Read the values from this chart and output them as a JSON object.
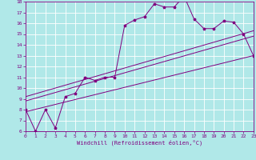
{
  "xlabel": "Windchill (Refroidissement éolien,°C)",
  "bg_color": "#b0e8e8",
  "line_color": "#800080",
  "grid_color": "#ffffff",
  "xmin": 0,
  "xmax": 23,
  "ymin": 6,
  "ymax": 18,
  "series1_x": [
    0,
    1,
    2,
    3,
    4,
    5,
    6,
    7,
    8,
    9,
    10,
    11,
    12,
    13,
    14,
    15,
    16,
    17,
    18,
    19,
    20,
    21,
    22,
    23
  ],
  "series1_y": [
    8,
    6,
    8,
    6.3,
    9.2,
    9.5,
    11.0,
    10.7,
    11.0,
    11.0,
    15.8,
    16.3,
    16.6,
    17.8,
    17.5,
    17.5,
    18.5,
    16.4,
    15.5,
    15.5,
    16.2,
    16.1,
    15.0,
    13.0
  ],
  "series2_x": [
    0,
    23
  ],
  "series2_y": [
    7.8,
    13.0
  ],
  "series3_x": [
    0,
    23
  ],
  "series3_y": [
    8.8,
    14.8
  ],
  "series4_x": [
    0,
    23
  ],
  "series4_y": [
    9.2,
    15.3
  ]
}
